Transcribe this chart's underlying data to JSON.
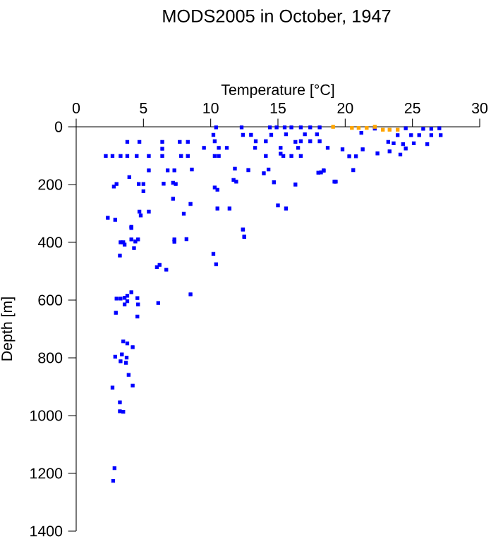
{
  "chart_data": {
    "type": "scatter",
    "title": "MODS2005 in October, 1947",
    "xlabel": "Temperature [°C]",
    "ylabel": "Depth [m]",
    "xlim": [
      0,
      30
    ],
    "xticks": [
      0,
      5,
      10,
      15,
      20,
      25,
      30
    ],
    "ylim": [
      1400,
      0
    ],
    "yticks": [
      0,
      200,
      400,
      600,
      800,
      1000,
      1200,
      1400
    ],
    "marker": "square",
    "grid": false,
    "series": [
      {
        "color": "#0000ff",
        "x": [
          2.2,
          2.7,
          3.3,
          3.8,
          4.5,
          5.4,
          6.4,
          7.8,
          8.3,
          3.8,
          4.7,
          6.4,
          7.7,
          8.3,
          6.4,
          5.4,
          6.8,
          7.3,
          8.6,
          3.95,
          2.8,
          3.0,
          4.65,
          5.0,
          5.0,
          6.5,
          7.2,
          7.4,
          7.2,
          8.5,
          8.0,
          5.4,
          4.7,
          4.8,
          2.35,
          2.9,
          4.1,
          10.4,
          10.2,
          10.3,
          9.5,
          10.6,
          10.3,
          10.6,
          10.3,
          10.5,
          11.4,
          10.5,
          11.2,
          11.8,
          11.7,
          11.9,
          12.8,
          12.3,
          12.4,
          13.0,
          13.3,
          13.35,
          14.1,
          14.1,
          14.3,
          13.95,
          14.7,
          14.4,
          14.5,
          15.2,
          15.2,
          15.4,
          16.0,
          16.7,
          16.3,
          16.5,
          16.3,
          15.0,
          15.6,
          12.4,
          12.5,
          14.9,
          15.5,
          16.0,
          16.7,
          17.4,
          18.1,
          15.6,
          17.0,
          17.9,
          16.7,
          17.4,
          18.1,
          18.7,
          18.2,
          18.4,
          19.2,
          21.2,
          22.2,
          23.2,
          22.4,
          23.3,
          24.1,
          24.3,
          23.6,
          24.5,
          25.1,
          26.1,
          23.9,
          24.9,
          25.5,
          26.4,
          27.1,
          24.5,
          25.8,
          26.4,
          27.0,
          21.3,
          20.8,
          20.3,
          19.8,
          20.6,
          19.3,
          18.4,
          18.0,
          4.1,
          3.3,
          3.6,
          3.5,
          4.1,
          4.4,
          4.6,
          4.3,
          3.25,
          6.0,
          6.2,
          6.7,
          7.3,
          7.3,
          8.2,
          10.2,
          10.4,
          12.4,
          12.5,
          3.0,
          3.3,
          3.6,
          3.8,
          4.1,
          4.55,
          3.6,
          3.8,
          4.6,
          6.1,
          8.5,
          4.55,
          2.95,
          3.5,
          3.8,
          4.2,
          2.9,
          3.4,
          3.3,
          3.7,
          3.75,
          3.9,
          4.2,
          2.7,
          3.25,
          3.25,
          3.5,
          2.85,
          2.75
        ],
        "values": [
          101,
          101,
          101,
          101,
          101,
          101,
          101,
          101,
          101,
          52,
          52,
          52,
          52,
          52,
          76,
          151,
          151,
          151,
          148,
          174,
          207,
          198,
          198,
          198,
          223,
          197,
          194,
          198,
          249,
          267,
          301,
          294,
          294,
          307,
          315,
          322,
          346,
          2,
          28,
          50,
          73,
          73,
          101,
          101,
          210,
          218,
          283,
          283,
          73,
          145,
          184,
          190,
          150,
          2,
          28,
          28,
          73,
          50,
          50,
          101,
          148,
          161,
          192,
          2,
          28,
          73,
          93,
          101,
          101,
          101,
          52,
          73,
          200,
          272,
          283,
          356,
          380,
          2,
          2,
          2,
          2,
          2,
          2,
          26,
          26,
          26,
          50,
          50,
          50,
          73,
          158,
          151,
          190,
          21,
          6,
          52,
          92,
          85,
          96,
          60,
          57,
          75,
          57,
          60,
          29,
          29,
          29,
          29,
          29,
          5,
          7,
          7,
          5,
          78,
          102,
          102,
          78,
          150,
          190,
          152,
          159,
          350,
          400,
          408,
          400,
          390,
          397,
          390,
          420,
          446,
          486,
          478,
          495,
          390,
          398,
          389,
          440,
          476,
          355,
          381,
          595,
          595,
          592,
          585,
          573,
          593,
          615,
          604,
          615,
          610,
          580,
          657,
          644,
          743,
          750,
          763,
          796,
          788,
          812,
          817,
          799,
          859,
          896,
          903,
          954,
          985,
          987,
          1182,
          1226
        ]
      },
      {
        "color": "#ffa500",
        "x": [
          19.1,
          20.5,
          21.0,
          21.6,
          22.2,
          22.8,
          23.3,
          23.9
        ],
        "values": [
          0,
          4,
          4,
          4,
          0,
          10,
          10,
          10
        ]
      }
    ]
  }
}
